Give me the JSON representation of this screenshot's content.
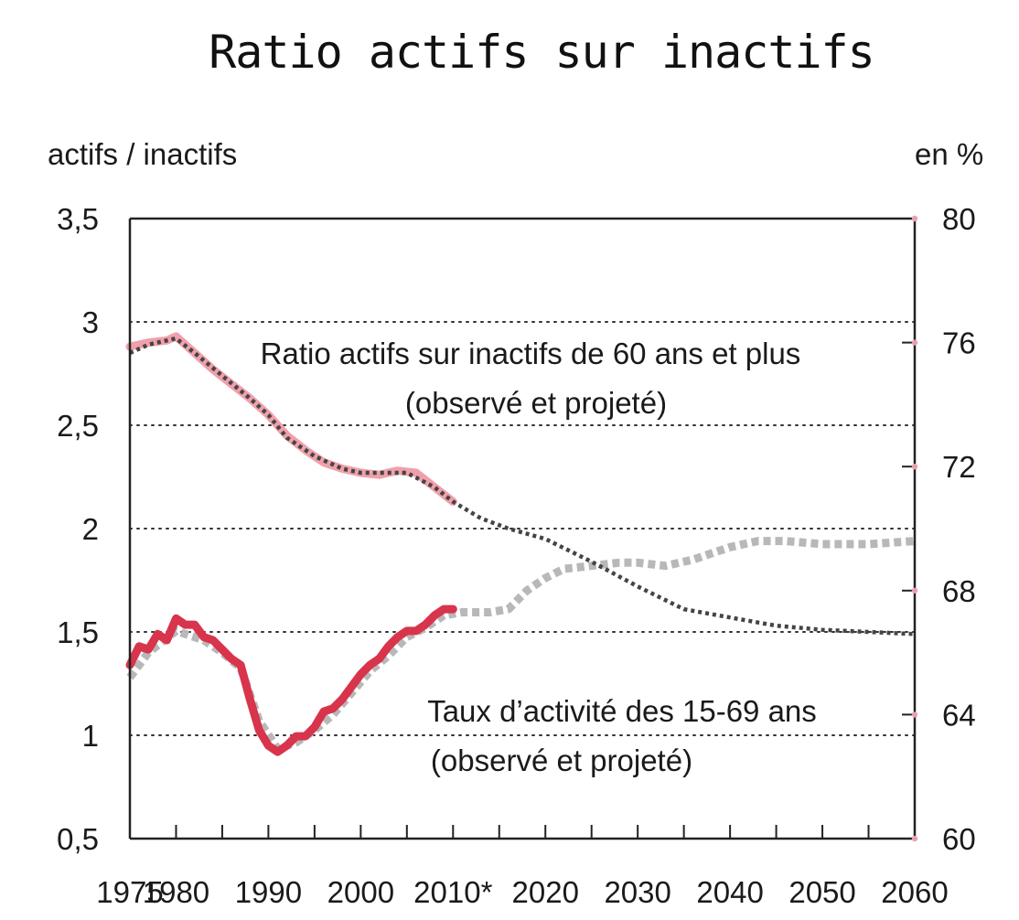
{
  "chart_data": {
    "type": "line",
    "title": "Ratio actifs sur inactifs",
    "left_axis": {
      "label": "actifs / inactifs",
      "ylim": [
        0.5,
        3.5
      ],
      "ticks": [
        0.5,
        1,
        1.5,
        2,
        2.5,
        3,
        3.5
      ],
      "tick_labels": [
        "0,5",
        "1",
        "1,5",
        "2",
        "2,5",
        "3",
        "3,5"
      ]
    },
    "right_axis": {
      "label": "en %",
      "ylim": [
        60,
        80
      ],
      "ticks": [
        60,
        64,
        68,
        72,
        76,
        80
      ],
      "tick_labels": [
        "60",
        "64",
        "68",
        "72",
        "76",
        "80"
      ]
    },
    "x_axis": {
      "xlim": [
        1975,
        2060
      ],
      "ticks": [
        1975,
        1980,
        1990,
        2000,
        2010,
        2020,
        2030,
        2040,
        2050,
        2060
      ],
      "tick_labels": [
        "1975",
        "1980",
        "1990",
        "2000",
        "2010*",
        "2020",
        "2030",
        "2040",
        "2050",
        "2060"
      ]
    },
    "gridlines_y": [
      1,
      1.5,
      2,
      2.5,
      3
    ],
    "series": [
      {
        "name": "ratio_observed",
        "axis": "left",
        "color": "#f0a0ac",
        "style": "solid",
        "points": [
          [
            1975,
            2.88
          ],
          [
            1977,
            2.9
          ],
          [
            1979,
            2.91
          ],
          [
            1980,
            2.93
          ],
          [
            1982,
            2.85
          ],
          [
            1984,
            2.77
          ],
          [
            1986,
            2.7
          ],
          [
            1988,
            2.63
          ],
          [
            1990,
            2.55
          ],
          [
            1992,
            2.45
          ],
          [
            1994,
            2.38
          ],
          [
            1996,
            2.32
          ],
          [
            1998,
            2.29
          ],
          [
            2000,
            2.27
          ],
          [
            2002,
            2.26
          ],
          [
            2004,
            2.28
          ],
          [
            2006,
            2.27
          ],
          [
            2008,
            2.2
          ],
          [
            2010,
            2.13
          ]
        ]
      },
      {
        "name": "ratio_projected",
        "axis": "left",
        "color": "#444444",
        "style": "dotted",
        "points": [
          [
            1975,
            2.85
          ],
          [
            1977,
            2.89
          ],
          [
            1980,
            2.92
          ],
          [
            1982,
            2.85
          ],
          [
            1985,
            2.74
          ],
          [
            1988,
            2.63
          ],
          [
            1990,
            2.55
          ],
          [
            1992,
            2.44
          ],
          [
            1995,
            2.35
          ],
          [
            1998,
            2.29
          ],
          [
            2000,
            2.27
          ],
          [
            2005,
            2.27
          ],
          [
            2008,
            2.2
          ],
          [
            2010,
            2.13
          ],
          [
            2013,
            2.05
          ],
          [
            2016,
            2.0
          ],
          [
            2020,
            1.95
          ],
          [
            2025,
            1.84
          ],
          [
            2030,
            1.72
          ],
          [
            2035,
            1.61
          ],
          [
            2040,
            1.57
          ],
          [
            2045,
            1.53
          ],
          [
            2050,
            1.51
          ],
          [
            2055,
            1.5
          ],
          [
            2060,
            1.49
          ]
        ]
      },
      {
        "name": "taux_observed",
        "axis": "right",
        "color": "#d8344c",
        "style": "solid",
        "points": [
          [
            1975,
            65.6
          ],
          [
            1976,
            66.2
          ],
          [
            1977,
            66.1
          ],
          [
            1978,
            66.6
          ],
          [
            1979,
            66.4
          ],
          [
            1980,
            67.1
          ],
          [
            1981,
            66.9
          ],
          [
            1982,
            66.9
          ],
          [
            1983,
            66.5
          ],
          [
            1984,
            66.4
          ],
          [
            1985,
            66.1
          ],
          [
            1986,
            65.8
          ],
          [
            1987,
            65.6
          ],
          [
            1988,
            64.5
          ],
          [
            1989,
            63.5
          ],
          [
            1990,
            63.0
          ],
          [
            1991,
            62.8
          ],
          [
            1992,
            63.0
          ],
          [
            1993,
            63.3
          ],
          [
            1994,
            63.3
          ],
          [
            1995,
            63.6
          ],
          [
            1996,
            64.1
          ],
          [
            1997,
            64.2
          ],
          [
            1998,
            64.5
          ],
          [
            1999,
            64.9
          ],
          [
            2000,
            65.3
          ],
          [
            2001,
            65.6
          ],
          [
            2002,
            65.8
          ],
          [
            2003,
            66.2
          ],
          [
            2004,
            66.5
          ],
          [
            2005,
            66.7
          ],
          [
            2006,
            66.7
          ],
          [
            2007,
            66.9
          ],
          [
            2008,
            67.2
          ],
          [
            2009,
            67.4
          ],
          [
            2010,
            67.4
          ]
        ]
      },
      {
        "name": "taux_projected",
        "axis": "right",
        "color": "#b8b8b8",
        "style": "dashed",
        "points": [
          [
            1975,
            65.2
          ],
          [
            1977,
            66.0
          ],
          [
            1980,
            66.7
          ],
          [
            1983,
            66.4
          ],
          [
            1985,
            66.0
          ],
          [
            1987,
            65.5
          ],
          [
            1989,
            63.8
          ],
          [
            1991,
            62.9
          ],
          [
            1993,
            63.1
          ],
          [
            1995,
            63.5
          ],
          [
            1997,
            64.0
          ],
          [
            1999,
            64.7
          ],
          [
            2001,
            65.4
          ],
          [
            2003,
            65.9
          ],
          [
            2005,
            66.5
          ],
          [
            2007,
            66.8
          ],
          [
            2009,
            67.2
          ],
          [
            2011,
            67.3
          ],
          [
            2014,
            67.3
          ],
          [
            2016,
            67.4
          ],
          [
            2018,
            68.0
          ],
          [
            2020,
            68.4
          ],
          [
            2022,
            68.7
          ],
          [
            2025,
            68.8
          ],
          [
            2028,
            68.9
          ],
          [
            2030,
            68.9
          ],
          [
            2033,
            68.8
          ],
          [
            2036,
            69.0
          ],
          [
            2040,
            69.4
          ],
          [
            2043,
            69.6
          ],
          [
            2046,
            69.6
          ],
          [
            2050,
            69.5
          ],
          [
            2055,
            69.5
          ],
          [
            2060,
            69.6
          ]
        ]
      }
    ],
    "annotations": [
      {
        "series": "ratio",
        "lines": [
          "Ratio actifs sur inactifs de 60 ans et plus",
          "(observé et projeté)"
        ]
      },
      {
        "series": "taux",
        "lines": [
          "Taux d’activité des 15-69 ans",
          "(observé et projeté)"
        ]
      }
    ]
  }
}
